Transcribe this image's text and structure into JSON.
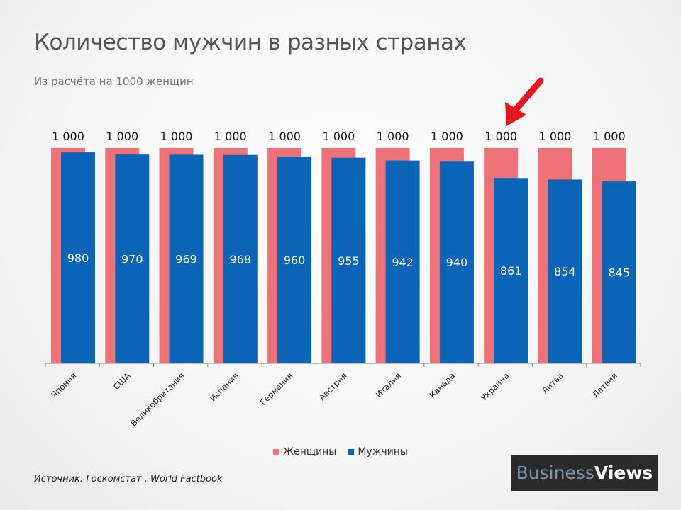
{
  "title": "Количество мужчин в разных странах",
  "subtitle": "Из расчёта на 1000 женщин",
  "source": "Источник: Госкомстат , World Factbook",
  "logo": {
    "part1": "Business",
    "part2": "Views"
  },
  "colors": {
    "women": "#ee7278",
    "men": "#0a64b7",
    "arrow": "#e8141d"
  },
  "chart_data": {
    "type": "bar",
    "categories": [
      "Япония",
      "США",
      "Великобритания",
      "Испания",
      "Германия",
      "Австрия",
      "Италия",
      "Канада",
      "Украина",
      "Литва",
      "Латвия"
    ],
    "series": [
      {
        "name": "Женщины",
        "values": [
          1000,
          1000,
          1000,
          1000,
          1000,
          1000,
          1000,
          1000,
          1000,
          1000,
          1000
        ],
        "labels": [
          "1 000",
          "1 000",
          "1 000",
          "1 000",
          "1 000",
          "1 000",
          "1 000",
          "1 000",
          "1 000",
          "1 000",
          "1 000"
        ]
      },
      {
        "name": "Мужчины",
        "values": [
          980,
          970,
          969,
          968,
          960,
          955,
          942,
          940,
          861,
          854,
          845
        ],
        "labels": [
          "980",
          "970",
          "969",
          "968",
          "960",
          "955",
          "942",
          "940",
          "861",
          "854",
          "845"
        ]
      }
    ],
    "ylim": [
      0,
      1000
    ],
    "grid": false,
    "legend": "bottom",
    "highlight_category": "Украина"
  }
}
